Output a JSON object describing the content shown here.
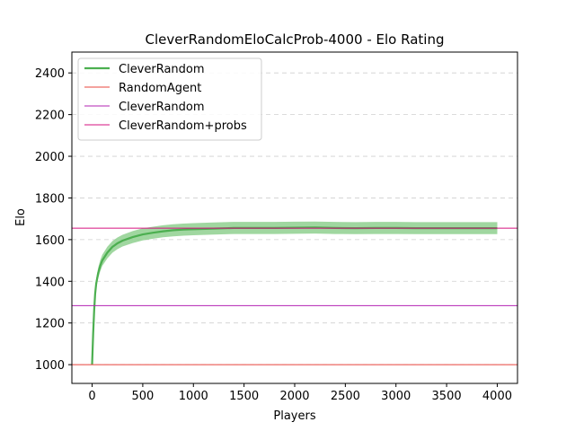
{
  "chart_data": {
    "type": "line",
    "title": "CleverRandomEloCalcProb-4000 - Elo Rating",
    "xlabel": "Players",
    "ylabel": "Elo",
    "xlim": [
      -200,
      4200
    ],
    "ylim": [
      910,
      2500
    ],
    "xticks": [
      0,
      500,
      1000,
      1500,
      2000,
      2500,
      3000,
      3500,
      4000
    ],
    "yticks": [
      1000,
      1200,
      1400,
      1600,
      1800,
      2000,
      2200,
      2400
    ],
    "grid": "y-dashed",
    "legend_position": "top-left",
    "series": [
      {
        "name": "CleverRandom",
        "kind": "line-with-band",
        "color": "#4caf50",
        "band_color": "#8fd08f",
        "x": [
          0,
          10,
          20,
          30,
          40,
          60,
          80,
          100,
          150,
          200,
          250,
          300,
          400,
          500,
          600,
          700,
          800,
          900,
          1000,
          1200,
          1400,
          1600,
          1800,
          2000,
          2200,
          2400,
          2600,
          2800,
          3000,
          3200,
          3400,
          3600,
          3800,
          4000
        ],
        "y": [
          1000,
          1150,
          1260,
          1340,
          1390,
          1440,
          1475,
          1500,
          1538,
          1565,
          1582,
          1595,
          1612,
          1625,
          1633,
          1640,
          1645,
          1648,
          1650,
          1653,
          1656,
          1656,
          1656,
          1657,
          1658,
          1656,
          1655,
          1656,
          1656,
          1655,
          1655,
          1655,
          1655,
          1655
        ],
        "band": [
          0,
          10,
          18,
          22,
          25,
          26,
          27,
          27,
          28,
          28,
          28,
          28,
          29,
          29,
          29,
          29,
          29,
          29,
          29,
          29,
          29,
          29,
          29,
          29,
          29,
          29,
          29,
          29,
          29,
          29,
          29,
          29,
          29,
          29
        ]
      },
      {
        "name": "RandomAgent",
        "kind": "hline",
        "y": 1000,
        "color": "#e8453c"
      },
      {
        "name": "CleverRandom",
        "kind": "hline",
        "y": 1283,
        "color": "#b323b3"
      },
      {
        "name": "CleverRandom+probs",
        "kind": "hline",
        "y": 1655,
        "color": "#d6117f"
      }
    ]
  }
}
